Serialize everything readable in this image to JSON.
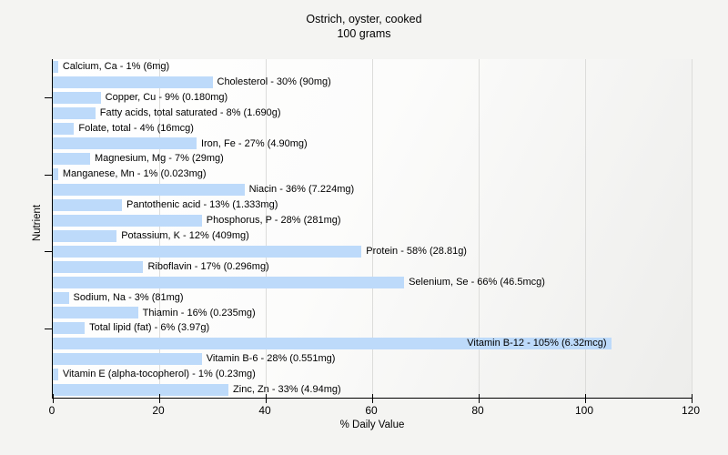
{
  "title": "Ostrich, oyster, cooked",
  "subtitle": "100 grams",
  "chart_data": {
    "type": "bar",
    "orientation": "horizontal",
    "title": "Ostrich, oyster, cooked",
    "subtitle": "100 grams",
    "xlabel": "% Daily Value",
    "ylabel": "Nutrient",
    "xlim": [
      0,
      120
    ],
    "xticks": [
      0,
      20,
      40,
      60,
      80,
      100,
      120
    ],
    "grid": "vertical gridlines at major x ticks",
    "legend": "none",
    "bar_color": "#bddafa",
    "background_color": "#f4f4f2",
    "categories": [
      "Calcium, Ca",
      "Cholesterol",
      "Copper, Cu",
      "Fatty acids, total saturated",
      "Folate, total",
      "Iron, Fe",
      "Magnesium, Mg",
      "Manganese, Mn",
      "Niacin",
      "Pantothenic acid",
      "Phosphorus, P",
      "Potassium, K",
      "Protein",
      "Riboflavin",
      "Selenium, Se",
      "Sodium, Na",
      "Thiamin",
      "Total lipid (fat)",
      "Vitamin B-12",
      "Vitamin B-6",
      "Vitamin E (alpha-tocopherol)",
      "Zinc, Zn"
    ],
    "values": [
      1,
      30,
      9,
      8,
      4,
      27,
      7,
      1,
      36,
      13,
      28,
      12,
      58,
      17,
      66,
      3,
      16,
      6,
      105,
      28,
      1,
      33
    ],
    "amounts": [
      "6mg",
      "90mg",
      "0.180mg",
      "1.690g",
      "16mcg",
      "4.90mg",
      "29mg",
      "0.023mg",
      "7.224mg",
      "1.333mg",
      "281mg",
      "409mg",
      "28.81g",
      "0.296mg",
      "46.5mcg",
      "81mg",
      "0.235mg",
      "3.97g",
      "6.32mcg",
      "0.551mg",
      "0.23mg",
      "4.94mg"
    ],
    "bar_labels": [
      "Calcium, Ca - 1% (6mg)",
      "Cholesterol - 30% (90mg)",
      "Copper, Cu - 9% (0.180mg)",
      "Fatty acids, total saturated - 8% (1.690g)",
      "Folate, total - 4% (16mcg)",
      "Iron, Fe - 27% (4.90mg)",
      "Magnesium, Mg - 7% (29mg)",
      "Manganese, Mn - 1% (0.023mg)",
      "Niacin - 36% (7.224mg)",
      "Pantothenic acid - 13% (1.333mg)",
      "Phosphorus, P - 28% (281mg)",
      "Potassium, K - 12% (409mg)",
      "Protein - 58% (28.81g)",
      "Riboflavin - 17% (0.296mg)",
      "Selenium, Se - 66% (46.5mcg)",
      "Sodium, Na - 3% (81mg)",
      "Thiamin - 16% (0.235mg)",
      "Total lipid (fat) - 6% (3.97g)",
      "Vitamin B-12 - 105% (6.32mcg)",
      "Vitamin B-6 - 28% (0.551mg)",
      "Vitamin E (alpha-tocopherol) - 1% (0.23mg)",
      "Zinc, Zn - 33% (4.94mg)"
    ]
  }
}
